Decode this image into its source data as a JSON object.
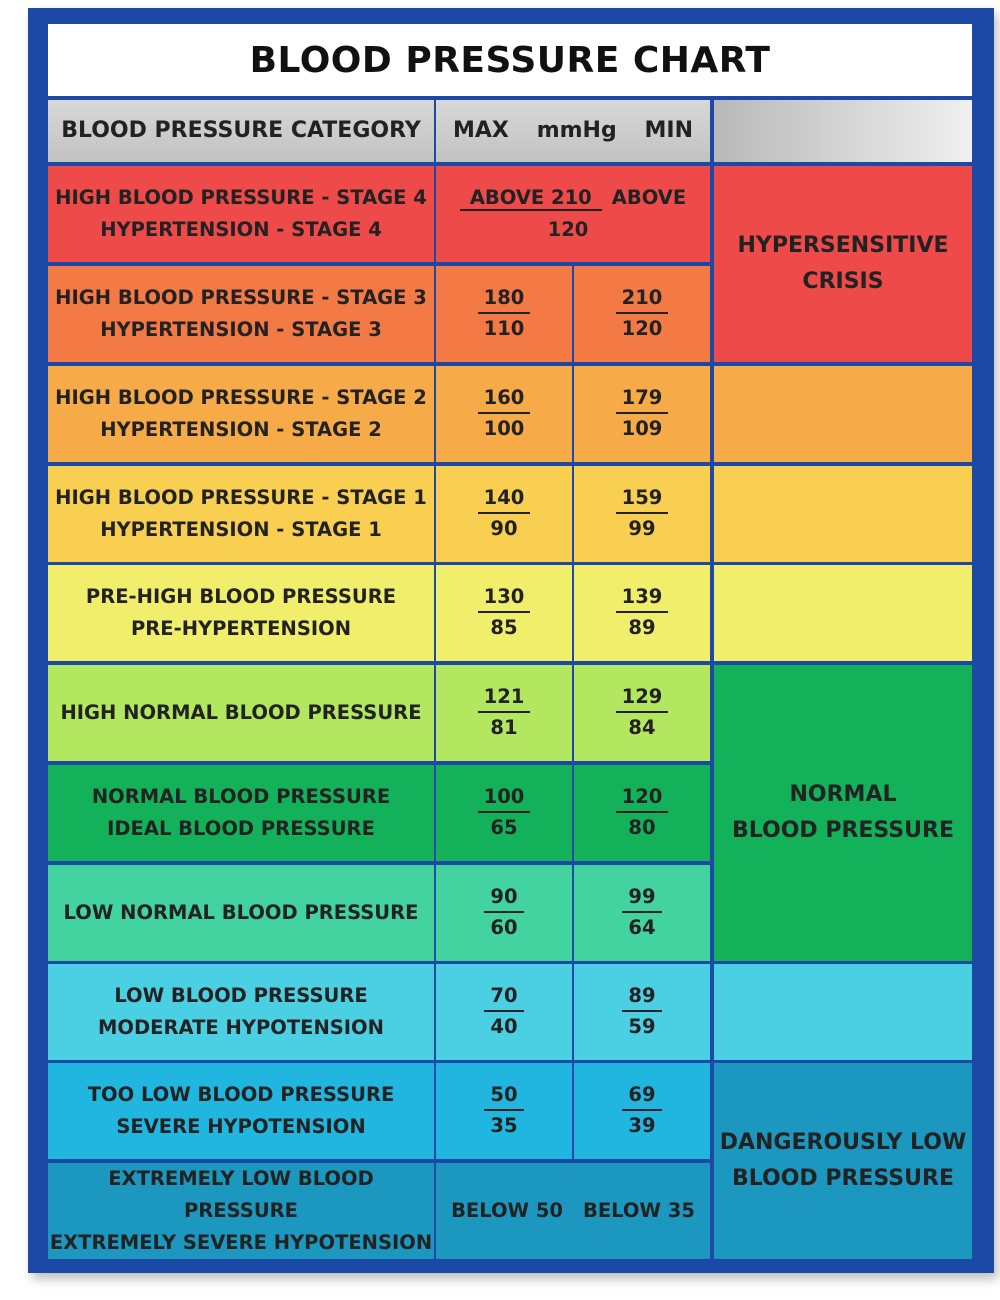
{
  "title": "BLOOD PRESSURE CHART",
  "header": {
    "category": "BLOOD PRESSURE CATEGORY",
    "max": "MAX",
    "unit": "mmHg",
    "min": "MIN"
  },
  "rows": [
    {
      "cat1": "HIGH BLOOD PRESSURE - STAGE 4",
      "cat2": "HYPERTENSION - STAGE 4",
      "range1": "ABOVE 210",
      "range2": "ABOVE 120",
      "color": "#ee4a4a"
    },
    {
      "cat1": "HIGH BLOOD PRESSURE - STAGE 3",
      "cat2": "HYPERTENSION - STAGE 3",
      "max_sys": "180",
      "max_dia": "110",
      "min_sys": "210",
      "min_dia": "120",
      "color": "#f47a45"
    },
    {
      "cat1": "HIGH BLOOD PRESSURE - STAGE 2",
      "cat2": "HYPERTENSION - STAGE 2",
      "max_sys": "160",
      "max_dia": "100",
      "min_sys": "179",
      "min_dia": "109",
      "color": "#f7aa48"
    },
    {
      "cat1": "HIGH BLOOD PRESSURE - STAGE 1",
      "cat2": "HYPERTENSION - STAGE 1",
      "max_sys": "140",
      "max_dia": "90",
      "min_sys": "159",
      "min_dia": "99",
      "color": "#f9cf52"
    },
    {
      "cat1": "PRE-HIGH BLOOD PRESSURE",
      "cat2": "PRE-HYPERTENSION",
      "max_sys": "130",
      "max_dia": "85",
      "min_sys": "139",
      "min_dia": "89",
      "color": "#f1ee6c"
    },
    {
      "cat1": "HIGH NORMAL BLOOD PRESSURE",
      "cat2": "",
      "max_sys": "121",
      "max_dia": "81",
      "min_sys": "129",
      "min_dia": "84",
      "color": "#b3e75f"
    },
    {
      "cat1": "NORMAL BLOOD PRESSURE",
      "cat2": "IDEAL BLOOD PRESSURE",
      "max_sys": "100",
      "max_dia": "65",
      "min_sys": "120",
      "min_dia": "80",
      "color": "#13b25a"
    },
    {
      "cat1": "LOW NORMAL BLOOD PRESSURE",
      "cat2": "",
      "max_sys": "90",
      "max_dia": "60",
      "min_sys": "99",
      "min_dia": "64",
      "color": "#42d3a0"
    },
    {
      "cat1": "LOW BLOOD PRESSURE",
      "cat2": "MODERATE HYPOTENSION",
      "max_sys": "70",
      "max_dia": "40",
      "min_sys": "89",
      "min_dia": "59",
      "color": "#4bcfe3"
    },
    {
      "cat1": "TOO LOW BLOOD PRESSURE",
      "cat2": "SEVERE HYPOTENSION",
      "max_sys": "50",
      "max_dia": "35",
      "min_sys": "69",
      "min_dia": "39",
      "color": "#20b6df"
    },
    {
      "cat1": "EXTREMELY LOW BLOOD PRESSURE",
      "cat2": "EXTREMELY SEVERE HYPOTENSION",
      "range1": "BELOW 50",
      "range2": "BELOW 35",
      "color": "#1c97c0"
    }
  ],
  "side": [
    {
      "line1": "HYPERSENSITIVE",
      "line2": "CRISIS",
      "color": "#ee4a4a"
    },
    {
      "line1": "",
      "line2": "",
      "color": "#f7aa48"
    },
    {
      "line1": "",
      "line2": "",
      "color": "#f9cf52"
    },
    {
      "line1": "",
      "line2": "",
      "color": "#f1ee6c"
    },
    {
      "line1": "NORMAL",
      "line2": "BLOOD PRESSURE",
      "color": "#13b25a"
    },
    {
      "line1": "",
      "line2": "",
      "color": "#4bcfe3"
    },
    {
      "line1": "DANGEROUSLY LOW",
      "line2": "BLOOD PRESSURE",
      "color": "#1c97c0"
    }
  ]
}
